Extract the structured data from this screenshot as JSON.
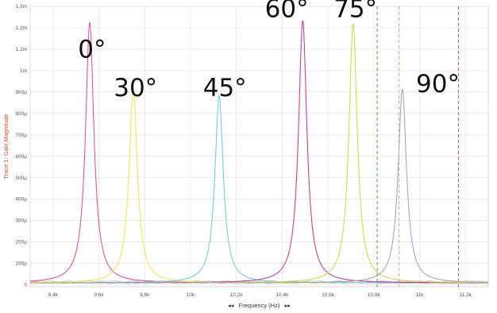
{
  "chart_data": {
    "type": "line",
    "xlabel": "Frequency (Hz)",
    "ylabel": "Trace 1: Gain Magnitude",
    "xlim": [
      9300,
      11300
    ],
    "ylim": [
      -10,
      1300
    ],
    "x_ticks": [
      {
        "value": 9400,
        "label": "9,4k"
      },
      {
        "value": 9600,
        "label": "9,6k"
      },
      {
        "value": 9800,
        "label": "9,8k"
      },
      {
        "value": 10000,
        "label": "10k"
      },
      {
        "value": 10200,
        "label": "10,2k"
      },
      {
        "value": 10400,
        "label": "10,4k"
      },
      {
        "value": 10600,
        "label": "10,6k"
      },
      {
        "value": 10800,
        "label": "10,8k"
      },
      {
        "value": 11000,
        "label": "11k"
      },
      {
        "value": 11200,
        "label": "11,2k"
      }
    ],
    "y_ticks": [
      {
        "value": 0,
        "label": "0"
      },
      {
        "value": 100,
        "label": "100µ"
      },
      {
        "value": 200,
        "label": "200µ"
      },
      {
        "value": 300,
        "label": "300µ"
      },
      {
        "value": 400,
        "label": "400µ"
      },
      {
        "value": 500,
        "label": "500µ"
      },
      {
        "value": 600,
        "label": "600µ"
      },
      {
        "value": 700,
        "label": "700µ"
      },
      {
        "value": 800,
        "label": "800µ"
      },
      {
        "value": 900,
        "label": "900µ"
      },
      {
        "value": 1000,
        "label": "1m"
      },
      {
        "value": 1100,
        "label": "1,1m"
      },
      {
        "value": 1200,
        "label": "1,2m"
      },
      {
        "value": 1300,
        "label": "1,3m"
      }
    ],
    "grid": true,
    "series": [
      {
        "f0": 9560,
        "peak": 1215,
        "color": "#e0569e"
      },
      {
        "f0": 9750,
        "peak": 905,
        "color": "#ecec4a"
      },
      {
        "f0": 10125,
        "peak": 875,
        "color": "#79cbe6"
      },
      {
        "f0": 10490,
        "peak": 1225,
        "color": "#c2439e"
      },
      {
        "f0": 10710,
        "peak": 1210,
        "color": "#c9e04a"
      },
      {
        "f0": 10925,
        "peak": 905,
        "color": "#a8a8a8"
      }
    ],
    "annotations": [
      {
        "text": "0°",
        "x": 9570,
        "y": 1060
      },
      {
        "text": "30°",
        "x": 9760,
        "y": 880
      },
      {
        "text": "45°",
        "x": 10150,
        "y": 880
      },
      {
        "text": "60°",
        "x": 10420,
        "y": 1250
      },
      {
        "text": "75°",
        "x": 10720,
        "y": 1250
      },
      {
        "text": "90°",
        "x": 11080,
        "y": 900
      }
    ],
    "markers": [
      {
        "x": 10815,
        "color": "#3aa85a"
      },
      {
        "x": 10910,
        "color": "#f0a36a"
      },
      {
        "x": 11170,
        "color": "#e05050"
      }
    ]
  }
}
